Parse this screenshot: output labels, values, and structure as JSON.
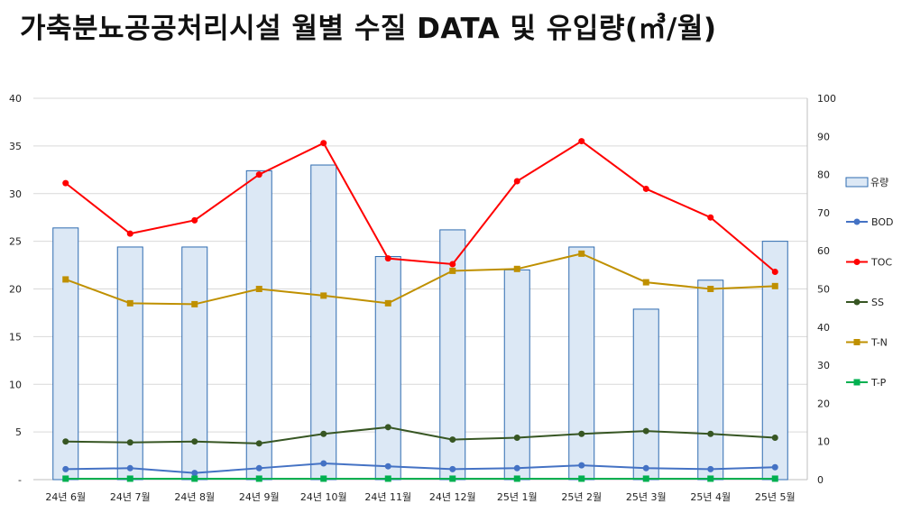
{
  "title": "가축분뇨공공처리시설 월별 수질 DATA 및 유입량(㎥/월)",
  "chart_data": {
    "type": "bar+line",
    "categories": [
      "24년 6월",
      "24년 7월",
      "24년 8월",
      "24년 9월",
      "24년 10월",
      "24년 11월",
      "24년 12월",
      "25년 1월",
      "25년 2월",
      "25년 3월",
      "25년 4월",
      "25년 5월"
    ],
    "left_axis": {
      "min": 0,
      "max": 40,
      "ticks": [
        "-",
        "5",
        "10",
        "15",
        "20",
        "25",
        "30",
        "35",
        "40"
      ]
    },
    "right_axis": {
      "min": 0,
      "max": 100,
      "ticks": [
        "0",
        "10",
        "20",
        "30",
        "40",
        "50",
        "60",
        "70",
        "80",
        "90",
        "100"
      ]
    },
    "bars": {
      "name": "유량",
      "axis": "right",
      "color": "#dce8f5",
      "stroke": "#2e6bb0",
      "values": [
        66,
        61,
        61,
        81,
        82.5,
        58.5,
        65.5,
        55,
        61,
        44.7,
        52.3,
        62.5
      ]
    },
    "series": [
      {
        "name": "BOD",
        "axis": "left",
        "color": "#4472c4",
        "marker": "circle",
        "values": [
          1.1,
          1.2,
          0.7,
          1.2,
          1.7,
          1.4,
          1.1,
          1.2,
          1.5,
          1.2,
          1.1,
          1.3
        ]
      },
      {
        "name": "TOC",
        "axis": "left",
        "color": "#ff0000",
        "marker": "circle",
        "values": [
          31.1,
          25.8,
          27.2,
          32.0,
          35.3,
          23.2,
          22.6,
          31.3,
          35.5,
          30.5,
          27.5,
          21.8
        ]
      },
      {
        "name": "SS",
        "axis": "left",
        "color": "#375623",
        "marker": "circle",
        "values": [
          4.0,
          3.9,
          4.0,
          3.8,
          4.8,
          5.5,
          4.2,
          4.4,
          4.8,
          5.1,
          4.8,
          4.4
        ]
      },
      {
        "name": "T-N",
        "axis": "left",
        "color": "#bf9000",
        "marker": "square",
        "values": [
          21.0,
          18.5,
          18.4,
          20.0,
          19.3,
          18.5,
          21.9,
          22.1,
          23.7,
          20.7,
          20.0,
          20.3
        ]
      },
      {
        "name": "T-P",
        "axis": "left",
        "color": "#00b050",
        "marker": "square",
        "values": [
          0.1,
          0.1,
          0.1,
          0.1,
          0.1,
          0.1,
          0.1,
          0.1,
          0.1,
          0.1,
          0.1,
          0.1
        ]
      }
    ],
    "grid": true,
    "legend": "right"
  }
}
